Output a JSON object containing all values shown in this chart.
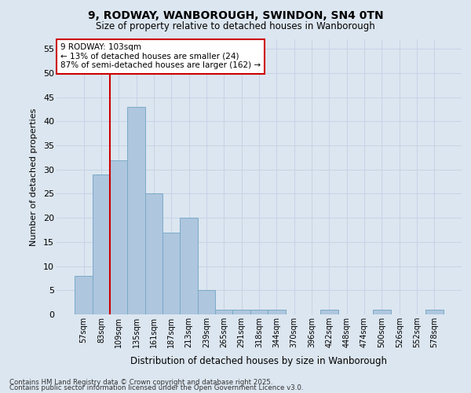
{
  "title1": "9, RODWAY, WANBOROUGH, SWINDON, SN4 0TN",
  "title2": "Size of property relative to detached houses in Wanborough",
  "xlabel": "Distribution of detached houses by size in Wanborough",
  "ylabel": "Number of detached properties",
  "categories": [
    "57sqm",
    "83sqm",
    "109sqm",
    "135sqm",
    "161sqm",
    "187sqm",
    "213sqm",
    "239sqm",
    "265sqm",
    "291sqm",
    "318sqm",
    "344sqm",
    "370sqm",
    "396sqm",
    "422sqm",
    "448sqm",
    "474sqm",
    "500sqm",
    "526sqm",
    "552sqm",
    "578sqm"
  ],
  "values": [
    8,
    29,
    32,
    43,
    25,
    17,
    20,
    5,
    1,
    1,
    1,
    1,
    0,
    0,
    1,
    0,
    0,
    1,
    0,
    0,
    1
  ],
  "bar_color": "#aec6de",
  "bar_edge_color": "#7aaac8",
  "grid_color": "#c8d4e8",
  "bg_color": "#dce6f0",
  "vline_color": "#cc0000",
  "vline_x": 1.5,
  "annotation_text": "9 RODWAY: 103sqm\n← 13% of detached houses are smaller (24)\n87% of semi-detached houses are larger (162) →",
  "annotation_box_color": "#ffffff",
  "annotation_box_edge": "#cc0000",
  "footnote1": "Contains HM Land Registry data © Crown copyright and database right 2025.",
  "footnote2": "Contains public sector information licensed under the Open Government Licence v3.0.",
  "ylim": [
    0,
    57
  ],
  "yticks": [
    0,
    5,
    10,
    15,
    20,
    25,
    30,
    35,
    40,
    45,
    50,
    55
  ]
}
